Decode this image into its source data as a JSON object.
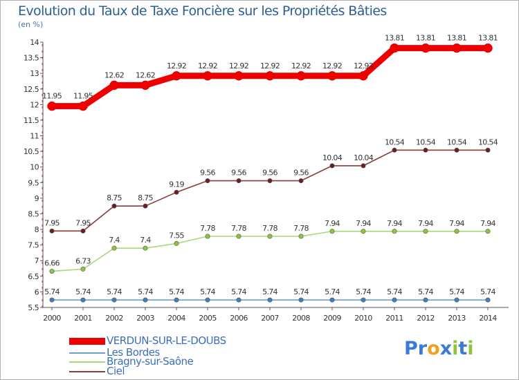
{
  "header": {
    "title": "Evolution du Taux de Taxe Foncière sur les Propriétés Bâties",
    "unit": "(en %)"
  },
  "logo": {
    "text": "Proxiti",
    "letters": [
      {
        "ch": "P",
        "color": "#3a7bd5"
      },
      {
        "ch": "r",
        "color": "#3a7bd5"
      },
      {
        "ch": "o",
        "color": "#f0a020"
      },
      {
        "ch": "x",
        "color": "#3a7bd5"
      },
      {
        "ch": "i",
        "color": "#8cc63f"
      },
      {
        "ch": "t",
        "color": "#3a7bd5"
      },
      {
        "ch": "i",
        "color": "#8cc63f"
      }
    ]
  },
  "chart_data": {
    "type": "line",
    "title": "Evolution du Taux de Taxe Foncière sur les Propriétés Bâties",
    "ylabel": "(en %)",
    "xlabel": "",
    "x": [
      "2000",
      "2001",
      "2002",
      "2003",
      "2004",
      "2005",
      "2006",
      "2007",
      "2008",
      "2009",
      "2010",
      "2011",
      "2012",
      "2013",
      "2014"
    ],
    "ylim": [
      5.5,
      14
    ],
    "yticks": [
      "5.5",
      "6",
      "6.5",
      "7",
      "7.5",
      "8",
      "8.5",
      "9",
      "9.5",
      "10",
      "10.5",
      "11",
      "11.5",
      "12",
      "12.5",
      "13",
      "13.5",
      "14"
    ],
    "grid": false,
    "legend_position": "bottom-left",
    "series": [
      {
        "name": "VERDUN-SUR-LE-DOUBS",
        "color": "#ee0000",
        "point_color": "#ee0000",
        "values": [
          11.95,
          11.95,
          12.62,
          12.62,
          12.92,
          12.92,
          12.92,
          12.92,
          12.92,
          12.92,
          12.92,
          13.81,
          13.81,
          13.81,
          13.81
        ],
        "labels": [
          "11.95",
          "11.95",
          "12.62",
          "12.62",
          "12.92",
          "12.92",
          "12.92",
          "12.92",
          "12.92",
          "12.92",
          "12.92",
          "13.81",
          "13.81",
          "13.81",
          "13.81"
        ]
      },
      {
        "name": "Les Bordes",
        "color": "#6aa0d0",
        "point_color": "#3f7fc0",
        "values": [
          5.74,
          5.74,
          5.74,
          5.74,
          5.74,
          5.74,
          5.74,
          5.74,
          5.74,
          5.74,
          5.74,
          5.74,
          5.74,
          5.74,
          5.74
        ],
        "labels": [
          "5.74",
          "5.74",
          "5.74",
          "5.74",
          "5.74",
          "5.74",
          "5.74",
          "5.74",
          "5.74",
          "5.74",
          "5.74",
          "5.74",
          "5.74",
          "5.74",
          "5.74"
        ]
      },
      {
        "name": "Bragny-sur-Saône",
        "color": "#a8d878",
        "point_color": "#8cc63f",
        "values": [
          6.66,
          6.73,
          7.4,
          7.4,
          7.55,
          7.78,
          7.78,
          7.78,
          7.78,
          7.94,
          7.94,
          7.94,
          7.94,
          7.94,
          7.94
        ],
        "labels": [
          "6.66",
          "6.73",
          "7.4",
          "7.4",
          "7.55",
          "7.78",
          "7.78",
          "7.78",
          "7.78",
          "7.94",
          "7.94",
          "7.94",
          "7.94",
          "7.94",
          "7.94"
        ]
      },
      {
        "name": "Ciel",
        "color": "#8a3a3a",
        "point_color": "#6b1e1e",
        "values": [
          7.95,
          7.95,
          8.75,
          8.75,
          9.19,
          9.56,
          9.56,
          9.56,
          9.56,
          10.04,
          10.04,
          10.54,
          10.54,
          10.54,
          10.54
        ],
        "labels": [
          "7.95",
          "7.95",
          "8.75",
          "8.75",
          "9.19",
          "9.56",
          "9.56",
          "9.56",
          "9.56",
          "10.04",
          "10.04",
          "10.54",
          "10.54",
          "10.54",
          "10.54"
        ]
      }
    ]
  }
}
